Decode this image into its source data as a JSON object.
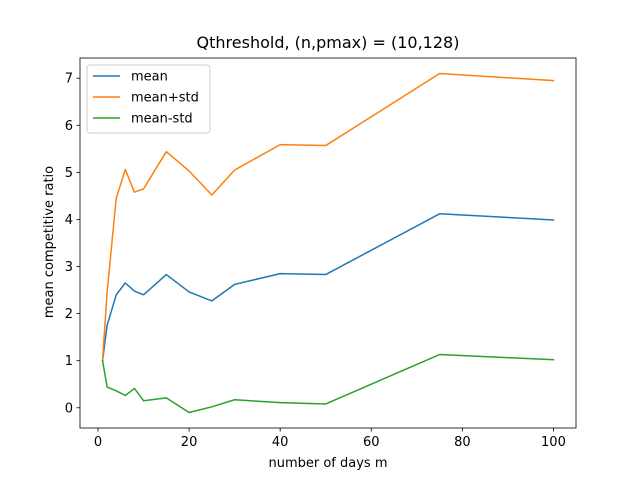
{
  "chart_data": {
    "type": "line",
    "title": "Qthreshold, (n,pmax) = (10,128)",
    "xlabel": "number of days m",
    "ylabel": "mean competitive ratio",
    "xlim": [
      -3.95,
      104.95
    ],
    "ylim": [
      -0.43,
      7.43
    ],
    "xticks": [
      0,
      20,
      40,
      60,
      80,
      100
    ],
    "yticks": [
      0,
      1,
      2,
      3,
      4,
      5,
      6,
      7
    ],
    "grid": false,
    "legend_position": "top-left",
    "x": [
      1,
      2,
      4,
      6,
      8,
      10,
      15,
      20,
      25,
      30,
      40,
      50,
      75,
      100
    ],
    "series": [
      {
        "name": "mean",
        "color": "#1f77b4",
        "values": [
          1.0,
          1.75,
          2.4,
          2.65,
          2.48,
          2.4,
          2.83,
          2.46,
          2.27,
          2.62,
          2.85,
          2.83,
          4.12,
          3.99
        ]
      },
      {
        "name": "mean+std",
        "color": "#ff7f0e",
        "values": [
          1.0,
          2.45,
          4.45,
          5.06,
          4.58,
          4.65,
          5.44,
          5.03,
          4.52,
          5.05,
          5.59,
          5.57,
          7.1,
          6.95
        ]
      },
      {
        "name": "mean-std",
        "color": "#2ca02c",
        "values": [
          1.0,
          0.44,
          0.36,
          0.26,
          0.41,
          0.15,
          0.21,
          -0.1,
          0.02,
          0.17,
          0.11,
          0.08,
          1.13,
          1.02
        ]
      }
    ]
  }
}
